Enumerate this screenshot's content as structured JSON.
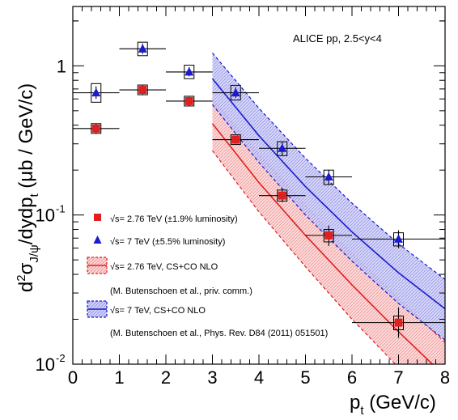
{
  "chart_data": {
    "type": "scatter",
    "title": "",
    "annotation": "ALICE pp, 2.5<y<4",
    "xlabel": "p",
    "xlabel_sub": "t",
    "xlabel_units": " (GeV/c)",
    "ylabel_main": "d",
    "ylabel_sup": "2",
    "ylabel_sigma": "σ",
    "ylabel_sigma_sub": "J/ψ",
    "ylabel_mid": "/dydp",
    "ylabel_mid_sub": "t",
    "ylabel_units": " (μb / GeV/c)",
    "xlim": [
      0,
      8
    ],
    "ylim": [
      0.01,
      2.5
    ],
    "yscale": "log",
    "x_ticks": [
      "0",
      "1",
      "2",
      "3",
      "4",
      "5",
      "6",
      "7",
      "8"
    ],
    "y_ticks": [
      {
        "value": 1,
        "label": "1",
        "exp": ""
      },
      {
        "value": 0.1,
        "label": "10",
        "exp": "-1"
      },
      {
        "value": 0.01,
        "label": "10",
        "exp": "-2"
      }
    ],
    "grid": false,
    "legend_position": "bottom-left",
    "legend": [
      {
        "kind": "marker-square",
        "color": "#e02020",
        "text": "√s= 2.76 TeV (±1.9% luminosity)"
      },
      {
        "kind": "marker-triangle",
        "color": "#1a1ad0",
        "text": "√s= 7 TeV (±5.5% luminosity)"
      },
      {
        "kind": "band",
        "color": "#e02020",
        "text": "√s= 2.76 TeV, CS+CO NLO"
      },
      {
        "kind": "note",
        "color": "#000000",
        "text": "(M. Butenschoen et al., priv. comm.)"
      },
      {
        "kind": "band",
        "color": "#1a1ad0",
        "text": "√s= 7 TeV, CS+CO NLO"
      },
      {
        "kind": "note",
        "color": "#000000",
        "text": "(M. Butenschoen et al., Phys. Rev. D84 (2011) 051501)"
      }
    ],
    "series": [
      {
        "name": "√s= 2.76 TeV (±1.9% luminosity)",
        "marker": "square",
        "color": "#e02020",
        "points": [
          {
            "x": 0.5,
            "xlo": 0,
            "xhi": 1,
            "y": 0.38,
            "ylo": 0.35,
            "yhi": 0.41,
            "syslo": 0.355,
            "syshi": 0.405
          },
          {
            "x": 1.5,
            "xlo": 1,
            "xhi": 2,
            "y": 0.69,
            "ylo": 0.64,
            "yhi": 0.74,
            "syslo": 0.645,
            "syshi": 0.735
          },
          {
            "x": 2.5,
            "xlo": 2,
            "xhi": 3,
            "y": 0.58,
            "ylo": 0.54,
            "yhi": 0.62,
            "syslo": 0.545,
            "syshi": 0.615
          },
          {
            "x": 3.5,
            "xlo": 3,
            "xhi": 4,
            "y": 0.32,
            "ylo": 0.3,
            "yhi": 0.34,
            "syslo": 0.3,
            "syshi": 0.34
          },
          {
            "x": 4.5,
            "xlo": 4,
            "xhi": 5,
            "y": 0.135,
            "ylo": 0.122,
            "yhi": 0.15,
            "syslo": 0.124,
            "syshi": 0.147
          },
          {
            "x": 5.5,
            "xlo": 5,
            "xhi": 6,
            "y": 0.073,
            "ylo": 0.062,
            "yhi": 0.085,
            "syslo": 0.066,
            "syshi": 0.08
          },
          {
            "x": 7.0,
            "xlo": 6,
            "xhi": 8,
            "y": 0.019,
            "ylo": 0.015,
            "yhi": 0.024,
            "syslo": 0.017,
            "syshi": 0.021
          }
        ]
      },
      {
        "name": "√s= 7 TeV (±5.5% luminosity)",
        "marker": "triangle",
        "color": "#1a1ad0",
        "points": [
          {
            "x": 0.5,
            "xlo": 0,
            "xhi": 1,
            "y": 0.66,
            "ylo": 0.6,
            "yhi": 0.73,
            "syslo": 0.57,
            "syshi": 0.76
          },
          {
            "x": 1.5,
            "xlo": 1,
            "xhi": 2,
            "y": 1.3,
            "ylo": 1.2,
            "yhi": 1.41,
            "syslo": 1.17,
            "syshi": 1.44
          },
          {
            "x": 2.5,
            "xlo": 2,
            "xhi": 3,
            "y": 0.91,
            "ylo": 0.85,
            "yhi": 0.98,
            "syslo": 0.82,
            "syshi": 1.01
          },
          {
            "x": 3.5,
            "xlo": 3,
            "xhi": 4,
            "y": 0.66,
            "ylo": 0.61,
            "yhi": 0.72,
            "syslo": 0.59,
            "syshi": 0.74
          },
          {
            "x": 4.5,
            "xlo": 4,
            "xhi": 5,
            "y": 0.28,
            "ylo": 0.25,
            "yhi": 0.31,
            "syslo": 0.25,
            "syshi": 0.31
          },
          {
            "x": 5.5,
            "xlo": 5,
            "xhi": 6,
            "y": 0.18,
            "ylo": 0.16,
            "yhi": 0.2,
            "syslo": 0.16,
            "syshi": 0.2
          },
          {
            "x": 7.0,
            "xlo": 6,
            "xhi": 8,
            "y": 0.069,
            "ylo": 0.06,
            "yhi": 0.079,
            "syslo": 0.062,
            "syshi": 0.076
          }
        ]
      }
    ],
    "bands": [
      {
        "name": "√s= 2.76 TeV, CS+CO NLO",
        "color": "#e02020",
        "x": [
          3,
          4,
          5,
          6,
          7,
          8
        ],
        "central": [
          0.41,
          0.165,
          0.073,
          0.034,
          0.0165,
          0.0083
        ],
        "lower": [
          0.27,
          0.105,
          0.045,
          0.02,
          0.0095,
          0.0047
        ],
        "upper": [
          0.6,
          0.255,
          0.115,
          0.055,
          0.0275,
          0.014
        ]
      },
      {
        "name": "√s= 7 TeV, CS+CO NLO",
        "color": "#1a1ad0",
        "x": [
          3,
          4,
          5,
          6,
          7,
          8
        ],
        "central": [
          0.82,
          0.34,
          0.155,
          0.077,
          0.041,
          0.0235
        ],
        "lower": [
          0.55,
          0.225,
          0.1,
          0.049,
          0.0255,
          0.0145
        ],
        "upper": [
          1.22,
          0.52,
          0.24,
          0.12,
          0.064,
          0.037
        ]
      }
    ]
  }
}
